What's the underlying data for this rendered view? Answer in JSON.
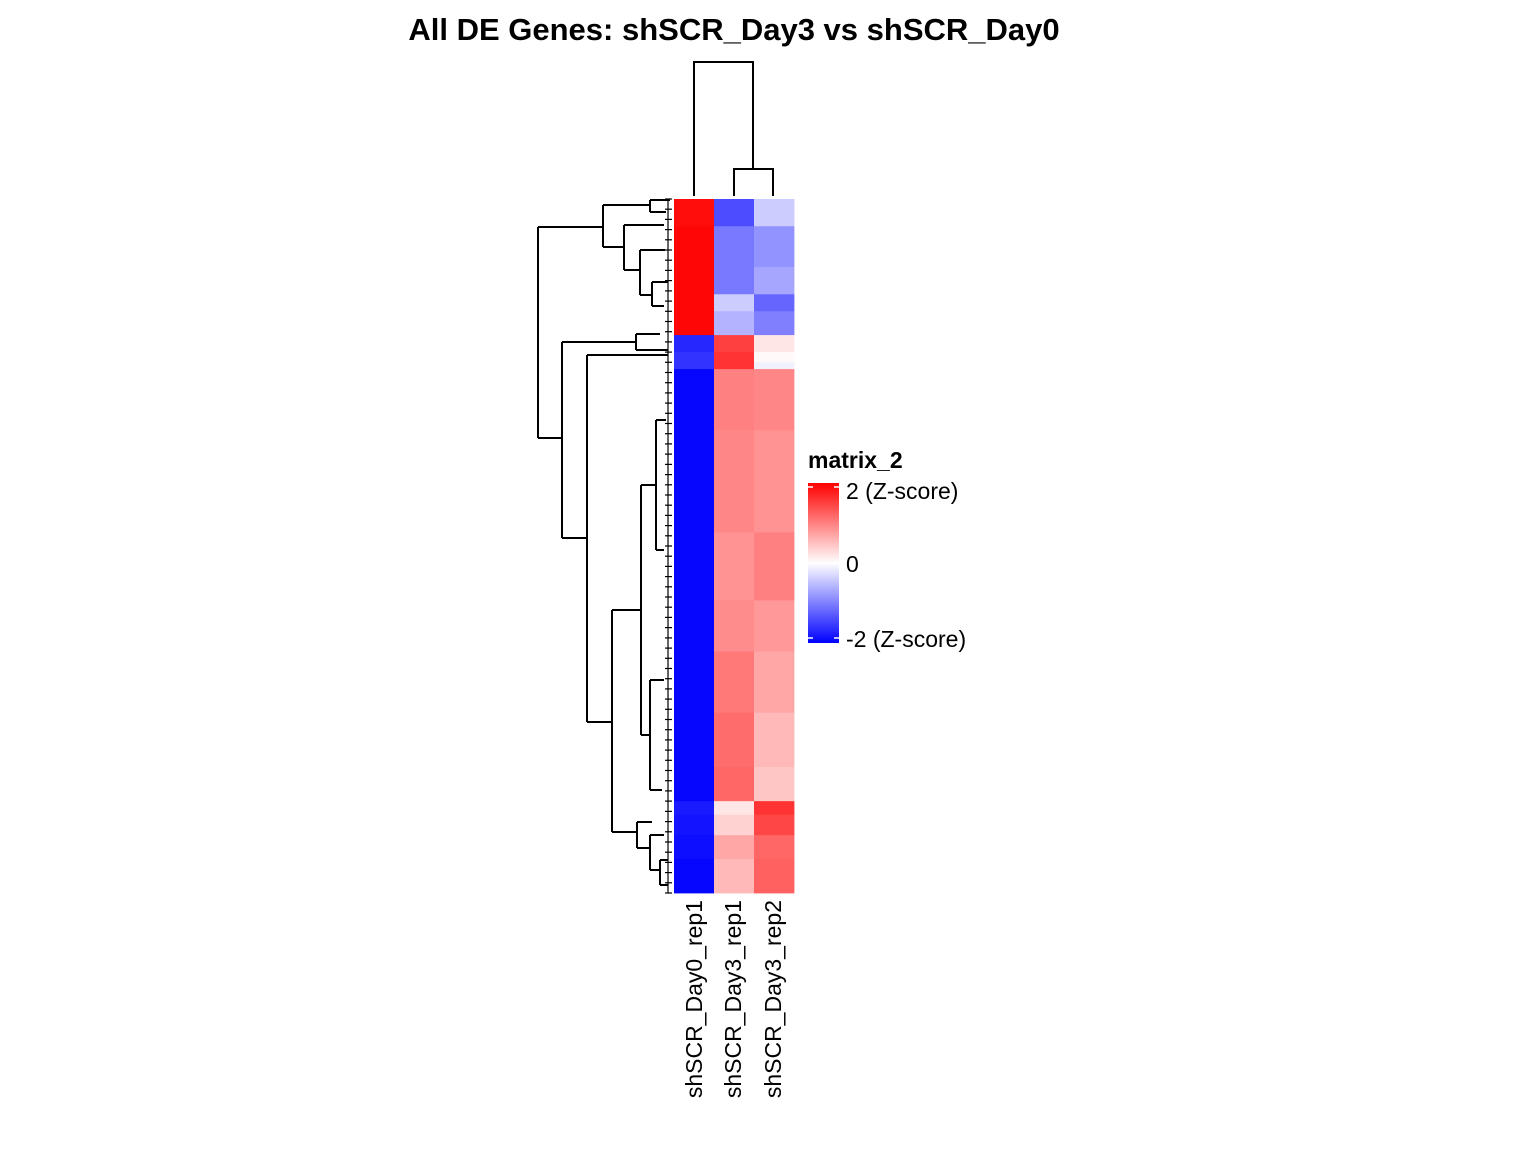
{
  "chart_data": {
    "type": "heatmap",
    "title": "All DE Genes: shSCR_Day3  vs  shSCR_Day0",
    "columns": [
      "shSCR_Day0_rep1",
      "shSCR_Day3_rep1",
      "shSCR_Day3_rep2"
    ],
    "column_dendrogram": "shSCR_Day0_rep1 | (shSCR_Day3_rep1, shSCR_Day3_rep2)",
    "row_dendrogram": "left",
    "color_scale": {
      "low": -2,
      "mid": 0,
      "high": 2,
      "low_color": "#0000ff",
      "mid_color": "#ffffff",
      "high_color": "#ff0000"
    },
    "legend": {
      "title": "matrix_2",
      "labels": [
        "2 (Z-score)",
        "0",
        "-2 (Z-score)"
      ],
      "placement": "right"
    },
    "row_blocks": [
      {
        "rows": 8,
        "values": [
          1.9,
          -1.4,
          -0.4
        ]
      },
      {
        "rows": 12,
        "values": [
          1.95,
          -1.05,
          -0.85
        ]
      },
      {
        "rows": 8,
        "values": [
          1.95,
          -1.05,
          -0.7
        ]
      },
      {
        "rows": 5,
        "values": [
          1.95,
          -0.4,
          -1.2
        ]
      },
      {
        "rows": 7,
        "values": [
          1.95,
          -0.6,
          -1.0
        ]
      },
      {
        "rows": 5,
        "values": [
          -1.7,
          1.5,
          0.2
        ]
      },
      {
        "rows": 3,
        "values": [
          -1.6,
          1.6,
          0.05
        ]
      },
      {
        "rows": 2,
        "values": [
          -1.6,
          1.6,
          -0.1
        ]
      },
      {
        "rows": 18,
        "values": [
          -1.95,
          1.0,
          0.95
        ]
      },
      {
        "rows": 30,
        "values": [
          -1.95,
          0.95,
          0.85
        ]
      },
      {
        "rows": 20,
        "values": [
          -1.95,
          0.85,
          1.0
        ]
      },
      {
        "rows": 15,
        "values": [
          -1.95,
          0.9,
          0.8
        ]
      },
      {
        "rows": 18,
        "values": [
          -1.95,
          1.05,
          0.7
        ]
      },
      {
        "rows": 16,
        "values": [
          -1.95,
          1.15,
          0.55
        ]
      },
      {
        "rows": 10,
        "values": [
          -1.95,
          1.2,
          0.45
        ]
      },
      {
        "rows": 4,
        "values": [
          -1.8,
          0.2,
          1.6
        ]
      },
      {
        "rows": 6,
        "values": [
          -1.85,
          0.35,
          1.45
        ]
      },
      {
        "rows": 7,
        "values": [
          -1.9,
          0.7,
          1.2
        ]
      },
      {
        "rows": 10,
        "values": [
          -1.95,
          0.55,
          1.25
        ]
      }
    ]
  }
}
